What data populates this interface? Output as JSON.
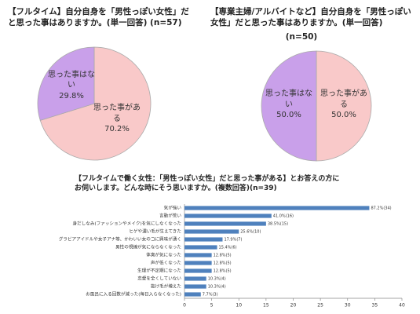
{
  "chart_data": [
    {
      "type": "pie",
      "title": "【フルタイム】自分自身を「男性っぽい女性」だと思った事はありますか。(単一回答) (n=57)",
      "categories": [
        "思った事がある",
        "思った事はない"
      ],
      "values": [
        70.2,
        29.8
      ],
      "value_labels": [
        "70.2%",
        "29.8%"
      ],
      "colors": [
        "#f9c9c9",
        "#c9a0ea"
      ]
    },
    {
      "type": "pie",
      "title": "【専業主婦/アルバイトなど】自分自身を「男性っぽい女性」だと思った事はありますか。(単一回答)",
      "subtitle": "(n=50)",
      "categories": [
        "思った事がある",
        "思った事はない"
      ],
      "values": [
        50.0,
        50.0
      ],
      "value_labels": [
        "50.0%",
        "50.0%"
      ],
      "colors": [
        "#f9c9c9",
        "#c9a0ea"
      ]
    },
    {
      "type": "hbar",
      "title": "【フルタイムで働く女性：「男性っぽい女性」だと思った事がある】とお答えの方にお伺いします。どんな時にそう思いますか。(複数回答)(n=39)",
      "categories": [
        "気が強い",
        "言動が荒い",
        "身だしなみ(ファッションやメイク)を気にしなくなった",
        "ヒゲや濃い毛が生えてきた",
        "グラビアアイドルや女子アナ等、かわいい女のコに興味が湧く",
        "男性の視線が気にならなくなった",
        "体臭が気になった",
        "声が低くなった",
        "生理が不定期になった",
        "恋愛を全くしていない",
        "抜け毛が増えた",
        "お風呂に入る回数が減った(毎日入らなくなった)"
      ],
      "values": [
        34,
        16,
        15,
        10,
        7,
        6,
        5,
        5,
        5,
        4,
        4,
        3
      ],
      "value_labels": [
        "87.2%(34)",
        "41.0%(16)",
        "38.5%(15)",
        "25.6%(10)",
        "17.9%(7)",
        "15.4%(6)",
        "12.8%(5)",
        "12.8%(5)",
        "12.8%(5)",
        "10.3%(4)",
        "10.3%(4)",
        "7.7%(3)"
      ],
      "color": "#4f81bd",
      "xlim": [
        0,
        40
      ],
      "xticks": [
        0,
        5,
        10,
        15,
        20,
        25,
        30,
        35,
        40
      ],
      "grid": false
    }
  ]
}
